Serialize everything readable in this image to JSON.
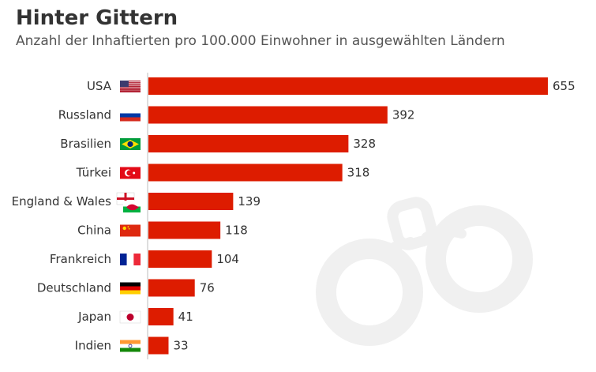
{
  "header": {
    "title": "Hinter Gittern",
    "subtitle": "Anzahl der Inhaftierten pro 100.000 Einwohner in ausgewählten Ländern"
  },
  "colors": {
    "bar": "#dd1c00",
    "axis": "#bdbdbd",
    "watermark": "#f1f1f1"
  },
  "decoration": {
    "watermark_icon": "handcuffs-icon"
  },
  "chart_data": {
    "type": "bar",
    "orientation": "horizontal",
    "title": "Hinter Gittern",
    "subtitle": "Anzahl der Inhaftierten pro 100.000 Einwohner in ausgewählten Ländern",
    "xlabel": "",
    "ylabel": "",
    "categories": [
      "USA",
      "Russland",
      "Brasilien",
      "Türkei",
      "England & Wales",
      "China",
      "Frankreich",
      "Deutschland",
      "Japan",
      "Indien"
    ],
    "flags": [
      "us-flag-icon",
      "russia-flag-icon",
      "brazil-flag-icon",
      "turkey-flag-icon",
      "england-wales-flag-icon",
      "china-flag-icon",
      "france-flag-icon",
      "germany-flag-icon",
      "japan-flag-icon",
      "india-flag-icon"
    ],
    "values": [
      655,
      392,
      328,
      318,
      139,
      118,
      104,
      76,
      41,
      33
    ],
    "xlim": [
      0,
      655
    ],
    "grid": false,
    "data_labels": true
  }
}
